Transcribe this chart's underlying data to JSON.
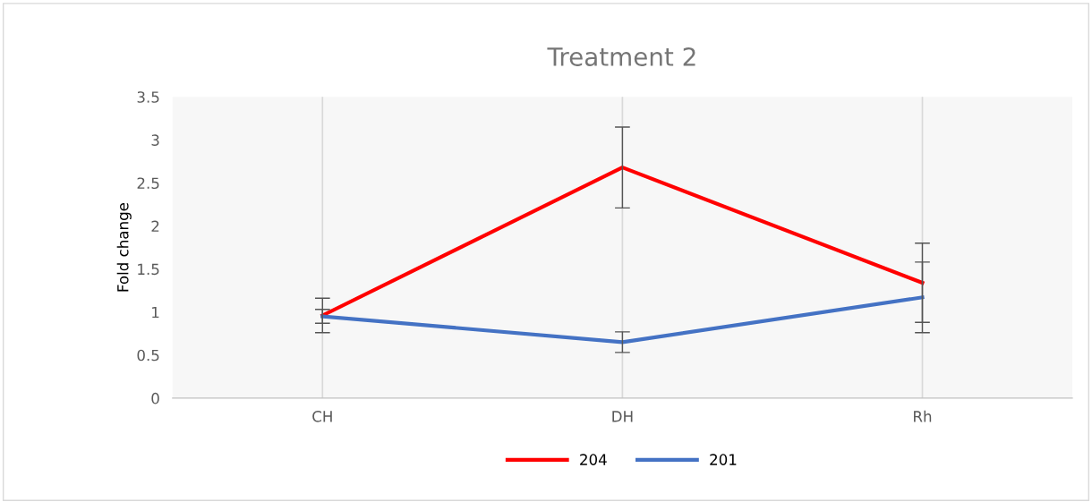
{
  "chart_data": {
    "type": "line",
    "title": "Treatment 2",
    "ylabel": "Fold change",
    "categories": [
      "CH",
      "DH",
      "Rh"
    ],
    "series": [
      {
        "name": "204",
        "color": "#ff0000",
        "values": [
          0.96,
          2.68,
          1.34
        ],
        "errors": [
          0.2,
          0.47,
          0.46
        ]
      },
      {
        "name": "201",
        "color": "#4472c4",
        "values": [
          0.95,
          0.65,
          1.17
        ],
        "errors": [
          0.08,
          0.12,
          0.41
        ]
      }
    ],
    "ylim": [
      0,
      3.5
    ],
    "yticks": [
      0,
      0.5,
      1,
      1.5,
      2,
      2.5,
      3,
      3.5
    ],
    "grid": "x",
    "legend": "bottom",
    "marker": "none",
    "line_style": "solid"
  }
}
